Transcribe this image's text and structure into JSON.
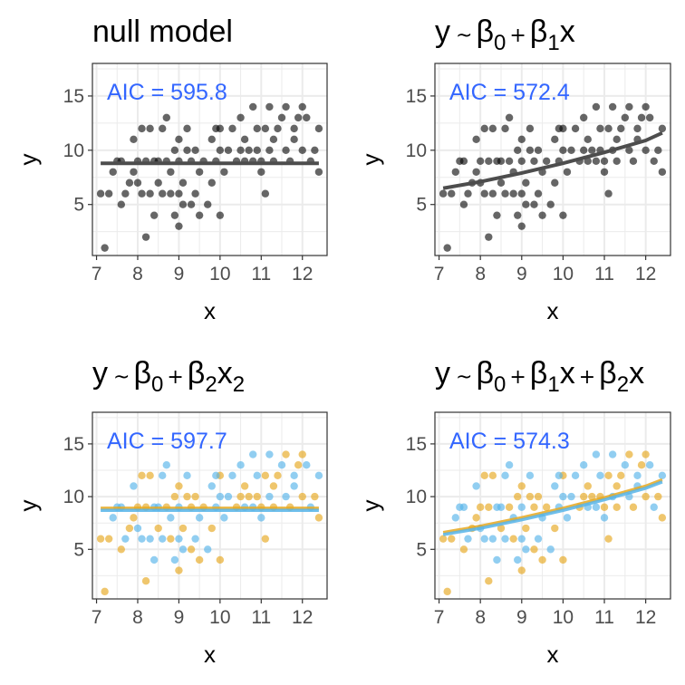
{
  "colors": {
    "black_points": "#000000",
    "orange": "#E6A81E",
    "blue": "#56B4E9",
    "aic": "#3366FF",
    "fit_line": "#4d4d4d",
    "grid": "#ebebeb",
    "border": "#333333"
  },
  "chart_data": [
    {
      "type": "scatter",
      "title_parts": [
        "null model"
      ],
      "xlabel": "x",
      "ylabel": "y",
      "xlim": [
        6.9,
        12.6
      ],
      "ylim": [
        0.3,
        18
      ],
      "xticks": [
        7,
        8,
        9,
        10,
        11,
        12
      ],
      "yticks": [
        5,
        10,
        15
      ],
      "grid": true,
      "annotation": "AIC = 595.8",
      "color_mode": "black",
      "fit": [
        {
          "x": [
            7.1,
            12.4
          ],
          "y": [
            8.8,
            8.8
          ],
          "color": "#4d4d4d"
        }
      ]
    },
    {
      "type": "scatter",
      "title_parts": [
        "y",
        "~",
        "β",
        "0",
        "+",
        "β",
        "1",
        "x"
      ],
      "xlabel": "x",
      "ylabel": "y",
      "xlim": [
        6.9,
        12.6
      ],
      "ylim": [
        0.3,
        18
      ],
      "xticks": [
        7,
        8,
        9,
        10,
        11,
        12
      ],
      "yticks": [
        5,
        10,
        15
      ],
      "grid": true,
      "annotation": "AIC = 572.4",
      "color_mode": "black",
      "fit": [
        {
          "x": [
            7.1,
            8.0,
            9.0,
            10.0,
            11.0,
            12.0,
            12.4
          ],
          "y": [
            6.5,
            7.1,
            7.9,
            8.8,
            9.8,
            10.9,
            11.6
          ],
          "color": "#4d4d4d"
        }
      ]
    },
    {
      "type": "scatter",
      "title_parts": [
        "y",
        "~",
        "β",
        "0",
        "+",
        "β",
        "2",
        "x",
        "2"
      ],
      "xlabel": "x",
      "ylabel": "y",
      "xlim": [
        6.9,
        12.6
      ],
      "ylim": [
        0.3,
        18
      ],
      "xticks": [
        7,
        8,
        9,
        10,
        11,
        12
      ],
      "yticks": [
        5,
        10,
        15
      ],
      "grid": true,
      "annotation": "AIC = 597.7",
      "color_mode": "group",
      "fit": [
        {
          "x": [
            7.1,
            12.4
          ],
          "y": [
            8.9,
            8.9
          ],
          "color": "#E6A81E"
        },
        {
          "x": [
            7.1,
            12.4
          ],
          "y": [
            8.7,
            8.7
          ],
          "color": "#56B4E9"
        }
      ]
    },
    {
      "type": "scatter",
      "title_parts": [
        "y",
        "~",
        "β",
        "0",
        "+",
        "β",
        "1",
        "x",
        "+",
        "β",
        "2",
        "x"
      ],
      "xlabel": "x",
      "ylabel": "y",
      "xlim": [
        6.9,
        12.6
      ],
      "ylim": [
        0.3,
        18
      ],
      "xticks": [
        7,
        8,
        9,
        10,
        11,
        12
      ],
      "yticks": [
        5,
        10,
        15
      ],
      "grid": true,
      "annotation": "AIC = 574.3",
      "color_mode": "group",
      "fit": [
        {
          "x": [
            7.1,
            8.0,
            9.0,
            10.0,
            11.0,
            12.0,
            12.4
          ],
          "y": [
            6.6,
            7.2,
            8.0,
            8.9,
            9.9,
            11.0,
            11.6
          ],
          "color": "#E6A81E"
        },
        {
          "x": [
            7.1,
            8.0,
            9.0,
            10.0,
            11.0,
            12.0,
            12.4
          ],
          "y": [
            6.4,
            7.0,
            7.8,
            8.7,
            9.7,
            10.8,
            11.4
          ],
          "color": "#56B4E9"
        }
      ]
    }
  ],
  "points": [
    {
      "x": 7.1,
      "y": 6,
      "g": 0
    },
    {
      "x": 7.2,
      "y": 1,
      "g": 0
    },
    {
      "x": 7.3,
      "y": 6,
      "g": 0
    },
    {
      "x": 7.4,
      "y": 8,
      "g": 1
    },
    {
      "x": 7.5,
      "y": 9,
      "g": 1
    },
    {
      "x": 7.6,
      "y": 5,
      "g": 0
    },
    {
      "x": 7.7,
      "y": 6,
      "g": 1
    },
    {
      "x": 7.8,
      "y": 7,
      "g": 0
    },
    {
      "x": 7.9,
      "y": 8,
      "g": 0
    },
    {
      "x": 7.9,
      "y": 11,
      "g": 1
    },
    {
      "x": 8.0,
      "y": 7,
      "g": 1
    },
    {
      "x": 8.0,
      "y": 9,
      "g": 0
    },
    {
      "x": 8.1,
      "y": 6,
      "g": 1
    },
    {
      "x": 8.1,
      "y": 12,
      "g": 0
    },
    {
      "x": 8.2,
      "y": 2,
      "g": 0
    },
    {
      "x": 8.2,
      "y": 9,
      "g": 0
    },
    {
      "x": 8.3,
      "y": 6,
      "g": 1
    },
    {
      "x": 8.3,
      "y": 12,
      "g": 0
    },
    {
      "x": 8.4,
      "y": 9,
      "g": 1
    },
    {
      "x": 8.4,
      "y": 4,
      "g": 1
    },
    {
      "x": 8.5,
      "y": 7,
      "g": 0
    },
    {
      "x": 8.5,
      "y": 9,
      "g": 1
    },
    {
      "x": 8.6,
      "y": 6,
      "g": 1
    },
    {
      "x": 8.6,
      "y": 12,
      "g": 1
    },
    {
      "x": 8.7,
      "y": 9,
      "g": 0
    },
    {
      "x": 8.7,
      "y": 13,
      "g": 1
    },
    {
      "x": 8.8,
      "y": 6,
      "g": 0
    },
    {
      "x": 8.8,
      "y": 8,
      "g": 1
    },
    {
      "x": 8.9,
      "y": 4,
      "g": 1
    },
    {
      "x": 8.9,
      "y": 10,
      "g": 0
    },
    {
      "x": 9.0,
      "y": 6,
      "g": 1
    },
    {
      "x": 9.0,
      "y": 9,
      "g": 1
    },
    {
      "x": 9.0,
      "y": 11,
      "g": 0
    },
    {
      "x": 9.0,
      "y": 3,
      "g": 0
    },
    {
      "x": 9.1,
      "y": 5,
      "g": 1
    },
    {
      "x": 9.1,
      "y": 7,
      "g": 0
    },
    {
      "x": 9.2,
      "y": 10,
      "g": 0
    },
    {
      "x": 9.2,
      "y": 12,
      "g": 1
    },
    {
      "x": 9.3,
      "y": 5,
      "g": 0
    },
    {
      "x": 9.3,
      "y": 9,
      "g": 0
    },
    {
      "x": 9.4,
      "y": 6,
      "g": 1
    },
    {
      "x": 9.4,
      "y": 10,
      "g": 0
    },
    {
      "x": 9.5,
      "y": 4,
      "g": 0
    },
    {
      "x": 9.5,
      "y": 8,
      "g": 1
    },
    {
      "x": 9.6,
      "y": 9,
      "g": 0
    },
    {
      "x": 9.7,
      "y": 5,
      "g": 1
    },
    {
      "x": 9.8,
      "y": 7,
      "g": 0
    },
    {
      "x": 9.8,
      "y": 11,
      "g": 1
    },
    {
      "x": 9.9,
      "y": 9,
      "g": 1
    },
    {
      "x": 10.0,
      "y": 10,
      "g": 1
    },
    {
      "x": 10.0,
      "y": 12,
      "g": 0
    },
    {
      "x": 10.0,
      "y": 4,
      "g": 0
    },
    {
      "x": 10.1,
      "y": 8,
      "g": 1
    },
    {
      "x": 10.2,
      "y": 10,
      "g": 1
    },
    {
      "x": 10.3,
      "y": 12,
      "g": 1
    },
    {
      "x": 10.4,
      "y": 9,
      "g": 0
    },
    {
      "x": 10.5,
      "y": 13,
      "g": 1
    },
    {
      "x": 10.5,
      "y": 10,
      "g": 0
    },
    {
      "x": 10.6,
      "y": 11,
      "g": 0
    },
    {
      "x": 10.6,
      "y": 9,
      "g": 1
    },
    {
      "x": 10.7,
      "y": 10,
      "g": 0
    },
    {
      "x": 10.8,
      "y": 9,
      "g": 1
    },
    {
      "x": 10.8,
      "y": 14,
      "g": 1
    },
    {
      "x": 10.9,
      "y": 10,
      "g": 0
    },
    {
      "x": 10.9,
      "y": 12,
      "g": 1
    },
    {
      "x": 11.0,
      "y": 9,
      "g": 0
    },
    {
      "x": 11.0,
      "y": 8,
      "g": 1
    },
    {
      "x": 11.1,
      "y": 6,
      "g": 0
    },
    {
      "x": 11.1,
      "y": 12,
      "g": 0
    },
    {
      "x": 11.2,
      "y": 14,
      "g": 1
    },
    {
      "x": 11.2,
      "y": 10,
      "g": 1
    },
    {
      "x": 11.3,
      "y": 11,
      "g": 0
    },
    {
      "x": 11.3,
      "y": 9,
      "g": 0
    },
    {
      "x": 11.4,
      "y": 12,
      "g": 0
    },
    {
      "x": 11.5,
      "y": 13,
      "g": 1
    },
    {
      "x": 11.6,
      "y": 10,
      "g": 1
    },
    {
      "x": 11.6,
      "y": 14,
      "g": 0
    },
    {
      "x": 11.7,
      "y": 9,
      "g": 0
    },
    {
      "x": 11.8,
      "y": 12,
      "g": 1
    },
    {
      "x": 11.8,
      "y": 11,
      "g": 1
    },
    {
      "x": 11.9,
      "y": 13,
      "g": 0
    },
    {
      "x": 12.0,
      "y": 14,
      "g": 0
    },
    {
      "x": 12.0,
      "y": 10,
      "g": 0
    },
    {
      "x": 12.1,
      "y": 13,
      "g": 1
    },
    {
      "x": 12.2,
      "y": 9,
      "g": 1
    },
    {
      "x": 12.3,
      "y": 10,
      "g": 0
    },
    {
      "x": 12.4,
      "y": 8,
      "g": 0
    },
    {
      "x": 12.4,
      "y": 12,
      "g": 1
    },
    {
      "x": 7.6,
      "y": 9,
      "g": 1
    },
    {
      "x": 9.9,
      "y": 12,
      "g": 1
    }
  ]
}
